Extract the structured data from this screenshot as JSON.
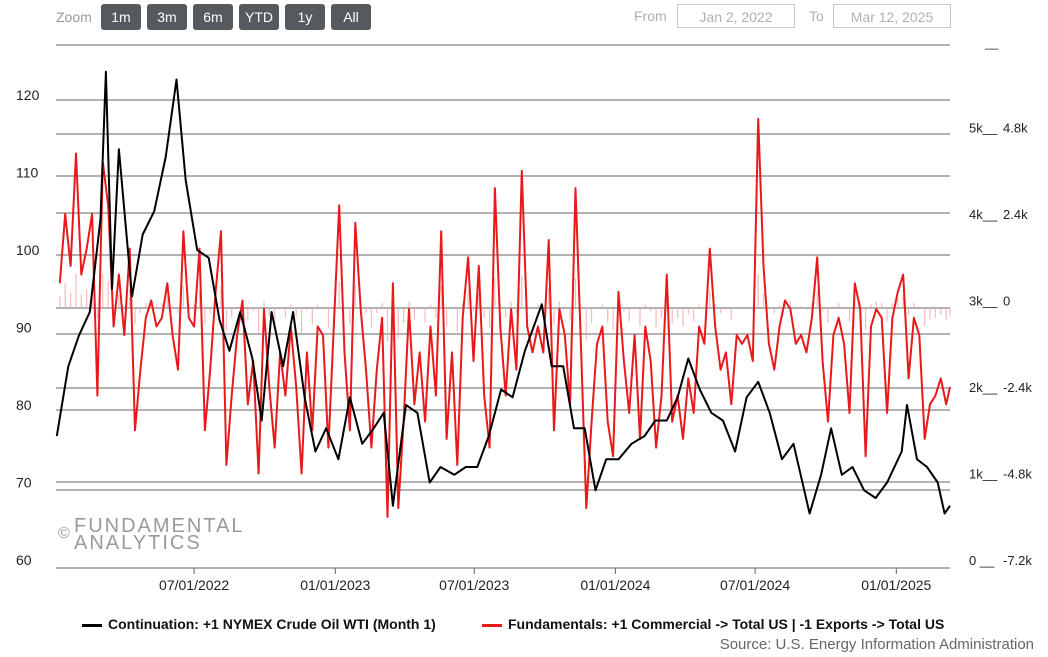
{
  "toolbar": {
    "zoom_label": "Zoom",
    "buttons": [
      "1m",
      "3m",
      "6m",
      "YTD",
      "1y",
      "All"
    ],
    "from_label": "From",
    "from_value": "Jan 2, 2022",
    "to_label": "To",
    "to_value": "Mar 12, 2025"
  },
  "watermark": {
    "line1": "FUNDAMENTAL",
    "line2": "ANALYTICS",
    "symbol": "©"
  },
  "legend": {
    "series1": "Continuation: +1 NYMEX Crude Oil WTI (Month 1)",
    "series2": "Fundamentals: +1 Commercial -> Total US | -1 Exports -> Total US"
  },
  "source": "Source: U.S. Energy Information Administration",
  "colors": {
    "series1": "#000000",
    "series2": "#e8191b",
    "bars": "#f0a0a0",
    "grid": "#666666"
  },
  "chart_data": {
    "type": "line",
    "x_range": [
      "2022-01-02",
      "2025-03-12"
    ],
    "x_ticks": [
      "07/01/2022",
      "01/01/2023",
      "07/01/2023",
      "01/01/2024",
      "07/01/2024",
      "01/01/2025"
    ],
    "left_axis": {
      "ticks": [
        60,
        70,
        80,
        90,
        100,
        110,
        120
      ],
      "labels": [
        "60",
        "70",
        "80",
        "90",
        "100",
        "110",
        "120"
      ]
    },
    "right_axis_1": {
      "ticks": [
        0,
        1000,
        2000,
        3000,
        4000,
        5000
      ],
      "labels": [
        "0 __",
        "1k__",
        "2k__",
        "3k__",
        "4k__",
        "5k__"
      ]
    },
    "right_axis_2": {
      "ticks": [
        -7200,
        -4800,
        -2400,
        0,
        2400,
        4800
      ],
      "labels": [
        "-7.2k",
        "-4.8k",
        "-2.4k",
        "0",
        "2.4k",
        "4.8k"
      ]
    },
    "series": [
      {
        "name": "Continuation: +1 NYMEX Crude Oil WTI (Month 1)",
        "axis": "left",
        "points": [
          [
            "2022-01-03",
            76
          ],
          [
            "2022-01-18",
            85
          ],
          [
            "2022-02-01",
            89
          ],
          [
            "2022-02-15",
            92
          ],
          [
            "2022-03-01",
            104
          ],
          [
            "2022-03-08",
            123
          ],
          [
            "2022-03-16",
            95
          ],
          [
            "2022-03-25",
            113
          ],
          [
            "2022-04-11",
            94
          ],
          [
            "2022-04-25",
            102
          ],
          [
            "2022-05-10",
            105
          ],
          [
            "2022-05-25",
            112
          ],
          [
            "2022-06-08",
            122
          ],
          [
            "2022-06-20",
            109
          ],
          [
            "2022-07-05",
            100
          ],
          [
            "2022-07-20",
            99
          ],
          [
            "2022-08-03",
            91
          ],
          [
            "2022-08-16",
            87
          ],
          [
            "2022-08-30",
            92
          ],
          [
            "2022-09-15",
            86
          ],
          [
            "2022-09-27",
            78
          ],
          [
            "2022-10-10",
            92
          ],
          [
            "2022-10-25",
            85
          ],
          [
            "2022-11-07",
            92
          ],
          [
            "2022-11-22",
            81
          ],
          [
            "2022-12-06",
            74
          ],
          [
            "2022-12-20",
            77
          ],
          [
            "2023-01-05",
            73
          ],
          [
            "2023-01-20",
            81
          ],
          [
            "2023-02-05",
            75
          ],
          [
            "2023-02-20",
            77
          ],
          [
            "2023-03-05",
            79
          ],
          [
            "2023-03-17",
            67
          ],
          [
            "2023-04-03",
            80
          ],
          [
            "2023-04-18",
            79
          ],
          [
            "2023-05-04",
            70
          ],
          [
            "2023-05-18",
            72
          ],
          [
            "2023-06-05",
            71
          ],
          [
            "2023-06-20",
            72
          ],
          [
            "2023-07-05",
            72
          ],
          [
            "2023-07-20",
            76
          ],
          [
            "2023-08-05",
            82
          ],
          [
            "2023-08-20",
            81
          ],
          [
            "2023-09-05",
            87
          ],
          [
            "2023-09-27",
            93
          ],
          [
            "2023-10-10",
            85
          ],
          [
            "2023-10-25",
            85
          ],
          [
            "2023-11-08",
            77
          ],
          [
            "2023-11-22",
            77
          ],
          [
            "2023-12-06",
            69
          ],
          [
            "2023-12-20",
            73
          ],
          [
            "2024-01-05",
            73
          ],
          [
            "2024-01-22",
            75
          ],
          [
            "2024-02-08",
            76
          ],
          [
            "2024-02-22",
            78
          ],
          [
            "2024-03-08",
            78
          ],
          [
            "2024-03-22",
            81
          ],
          [
            "2024-04-05",
            86
          ],
          [
            "2024-04-20",
            82
          ],
          [
            "2024-05-05",
            79
          ],
          [
            "2024-05-20",
            78
          ],
          [
            "2024-06-05",
            74
          ],
          [
            "2024-06-20",
            81
          ],
          [
            "2024-07-05",
            83
          ],
          [
            "2024-07-20",
            79
          ],
          [
            "2024-08-05",
            73
          ],
          [
            "2024-08-20",
            75
          ],
          [
            "2024-09-10",
            66
          ],
          [
            "2024-09-25",
            71
          ],
          [
            "2024-10-08",
            77
          ],
          [
            "2024-10-22",
            71
          ],
          [
            "2024-11-05",
            72
          ],
          [
            "2024-11-20",
            69
          ],
          [
            "2024-12-05",
            68
          ],
          [
            "2024-12-20",
            70
          ],
          [
            "2025-01-08",
            74
          ],
          [
            "2025-01-15",
            80
          ],
          [
            "2025-01-28",
            73
          ],
          [
            "2025-02-10",
            72
          ],
          [
            "2025-02-24",
            70
          ],
          [
            "2025-03-05",
            66
          ],
          [
            "2025-03-12",
            67
          ]
        ]
      },
      {
        "name": "Fundamentals: +1 Commercial -> Total US | -1 Exports -> Total US",
        "axis": "right",
        "points": [
          [
            "2022-01-07",
            3200
          ],
          [
            "2022-01-14",
            4000
          ],
          [
            "2022-01-21",
            3400
          ],
          [
            "2022-01-28",
            4700
          ],
          [
            "2022-02-04",
            3300
          ],
          [
            "2022-02-11",
            3600
          ],
          [
            "2022-02-18",
            4000
          ],
          [
            "2022-02-25",
            1900
          ],
          [
            "2022-03-04",
            4600
          ],
          [
            "2022-03-11",
            4100
          ],
          [
            "2022-03-18",
            2700
          ],
          [
            "2022-03-25",
            3300
          ],
          [
            "2022-04-01",
            2600
          ],
          [
            "2022-04-08",
            3600
          ],
          [
            "2022-04-15",
            1500
          ],
          [
            "2022-04-22",
            2200
          ],
          [
            "2022-04-29",
            2800
          ],
          [
            "2022-05-06",
            3000
          ],
          [
            "2022-05-13",
            2700
          ],
          [
            "2022-05-20",
            2800
          ],
          [
            "2022-05-27",
            3200
          ],
          [
            "2022-06-03",
            2600
          ],
          [
            "2022-06-10",
            2200
          ],
          [
            "2022-06-17",
            3800
          ],
          [
            "2022-06-24",
            2800
          ],
          [
            "2022-07-01",
            2700
          ],
          [
            "2022-07-08",
            3600
          ],
          [
            "2022-07-15",
            1500
          ],
          [
            "2022-07-22",
            2200
          ],
          [
            "2022-07-29",
            3100
          ],
          [
            "2022-08-05",
            3800
          ],
          [
            "2022-08-12",
            1100
          ],
          [
            "2022-08-19",
            1900
          ],
          [
            "2022-08-26",
            2600
          ],
          [
            "2022-09-02",
            3000
          ],
          [
            "2022-09-09",
            1800
          ],
          [
            "2022-09-16",
            2300
          ],
          [
            "2022-09-23",
            1000
          ],
          [
            "2022-09-30",
            2900
          ],
          [
            "2022-10-07",
            2000
          ],
          [
            "2022-10-14",
            1300
          ],
          [
            "2022-10-21",
            2400
          ],
          [
            "2022-10-28",
            1900
          ],
          [
            "2022-11-04",
            2700
          ],
          [
            "2022-11-11",
            2000
          ],
          [
            "2022-11-18",
            1000
          ],
          [
            "2022-11-25",
            2400
          ],
          [
            "2022-12-02",
            1500
          ],
          [
            "2022-12-09",
            2700
          ],
          [
            "2022-12-16",
            2600
          ],
          [
            "2022-12-23",
            1300
          ],
          [
            "2023-01-06",
            4100
          ],
          [
            "2023-01-13",
            2400
          ],
          [
            "2023-01-20",
            1500
          ],
          [
            "2023-01-27",
            3900
          ],
          [
            "2023-02-03",
            2900
          ],
          [
            "2023-02-10",
            2200
          ],
          [
            "2023-02-17",
            1300
          ],
          [
            "2023-02-24",
            2200
          ],
          [
            "2023-03-03",
            2800
          ],
          [
            "2023-03-10",
            500
          ],
          [
            "2023-03-17",
            3200
          ],
          [
            "2023-03-24",
            600
          ],
          [
            "2023-03-31",
            1600
          ],
          [
            "2023-04-07",
            2900
          ],
          [
            "2023-04-14",
            1800
          ],
          [
            "2023-04-21",
            2400
          ],
          [
            "2023-04-28",
            1600
          ],
          [
            "2023-05-05",
            2700
          ],
          [
            "2023-05-12",
            1900
          ],
          [
            "2023-05-19",
            3800
          ],
          [
            "2023-05-26",
            1400
          ],
          [
            "2023-06-02",
            2400
          ],
          [
            "2023-06-09",
            1100
          ],
          [
            "2023-06-16",
            2800
          ],
          [
            "2023-06-23",
            3500
          ],
          [
            "2023-06-30",
            2300
          ],
          [
            "2023-07-07",
            3400
          ],
          [
            "2023-07-14",
            1900
          ],
          [
            "2023-07-21",
            1300
          ],
          [
            "2023-07-28",
            4300
          ],
          [
            "2023-08-04",
            2700
          ],
          [
            "2023-08-11",
            1900
          ],
          [
            "2023-08-18",
            2900
          ],
          [
            "2023-08-25",
            2200
          ],
          [
            "2023-09-01",
            4500
          ],
          [
            "2023-09-08",
            2700
          ],
          [
            "2023-09-15",
            2400
          ],
          [
            "2023-09-22",
            2700
          ],
          [
            "2023-09-29",
            2400
          ],
          [
            "2023-10-06",
            3700
          ],
          [
            "2023-10-13",
            1500
          ],
          [
            "2023-10-20",
            2900
          ],
          [
            "2023-10-27",
            2600
          ],
          [
            "2023-11-03",
            1800
          ],
          [
            "2023-11-10",
            4300
          ],
          [
            "2023-11-17",
            2500
          ],
          [
            "2023-11-24",
            600
          ],
          [
            "2023-12-01",
            1600
          ],
          [
            "2023-12-08",
            2500
          ],
          [
            "2023-12-15",
            2700
          ],
          [
            "2023-12-22",
            1600
          ],
          [
            "2023-12-29",
            1200
          ],
          [
            "2024-01-05",
            3100
          ],
          [
            "2024-01-12",
            2300
          ],
          [
            "2024-01-19",
            1700
          ],
          [
            "2024-01-26",
            2600
          ],
          [
            "2024-02-02",
            1400
          ],
          [
            "2024-02-09",
            2700
          ],
          [
            "2024-02-16",
            2300
          ],
          [
            "2024-02-23",
            1300
          ],
          [
            "2024-03-01",
            1900
          ],
          [
            "2024-03-08",
            3300
          ],
          [
            "2024-03-15",
            1600
          ],
          [
            "2024-03-22",
            1900
          ],
          [
            "2024-03-29",
            1400
          ],
          [
            "2024-04-05",
            2100
          ],
          [
            "2024-04-12",
            1700
          ],
          [
            "2024-04-19",
            2700
          ],
          [
            "2024-04-26",
            2500
          ],
          [
            "2024-05-03",
            3600
          ],
          [
            "2024-05-10",
            2700
          ],
          [
            "2024-05-17",
            2200
          ],
          [
            "2024-05-24",
            2400
          ],
          [
            "2024-05-31",
            1800
          ],
          [
            "2024-06-07",
            2600
          ],
          [
            "2024-06-14",
            2500
          ],
          [
            "2024-06-21",
            2600
          ],
          [
            "2024-06-28",
            2300
          ],
          [
            "2024-07-05",
            5100
          ],
          [
            "2024-07-12",
            3400
          ],
          [
            "2024-07-19",
            2500
          ],
          [
            "2024-07-26",
            2200
          ],
          [
            "2024-08-02",
            2700
          ],
          [
            "2024-08-09",
            3000
          ],
          [
            "2024-08-16",
            2900
          ],
          [
            "2024-08-23",
            2500
          ],
          [
            "2024-08-30",
            2600
          ],
          [
            "2024-09-06",
            2400
          ],
          [
            "2024-09-13",
            2800
          ],
          [
            "2024-09-20",
            3500
          ],
          [
            "2024-09-27",
            2300
          ],
          [
            "2024-10-04",
            1600
          ],
          [
            "2024-10-11",
            2600
          ],
          [
            "2024-10-18",
            2800
          ],
          [
            "2024-10-25",
            2500
          ],
          [
            "2024-11-01",
            1700
          ],
          [
            "2024-11-08",
            3200
          ],
          [
            "2024-11-15",
            2900
          ],
          [
            "2024-11-22",
            1200
          ],
          [
            "2024-11-29",
            2700
          ],
          [
            "2024-12-06",
            2900
          ],
          [
            "2024-12-13",
            2800
          ],
          [
            "2024-12-20",
            1700
          ],
          [
            "2024-12-27",
            2800
          ],
          [
            "2025-01-03",
            3100
          ],
          [
            "2025-01-10",
            3300
          ],
          [
            "2025-01-17",
            2100
          ],
          [
            "2025-01-24",
            2800
          ],
          [
            "2025-01-31",
            2600
          ],
          [
            "2025-02-07",
            1400
          ],
          [
            "2025-02-14",
            1800
          ],
          [
            "2025-02-21",
            1900
          ],
          [
            "2025-02-28",
            2100
          ],
          [
            "2025-03-07",
            1800
          ],
          [
            "2025-03-12",
            2000
          ]
        ]
      }
    ]
  }
}
